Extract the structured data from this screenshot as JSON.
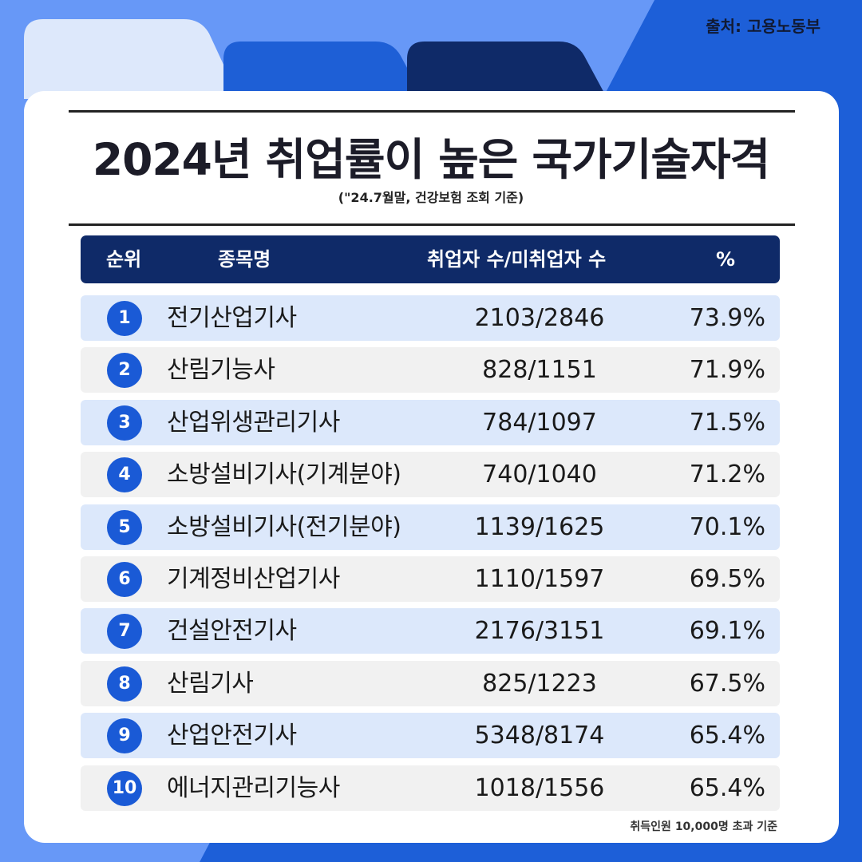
{
  "colors": {
    "background": "#5b8ff5",
    "tab_light": "#dde8fb",
    "tab_mid": "#1e5fd6",
    "tab_dark": "#0f2a68",
    "header_bg": "#0f2a68",
    "rank_circle": "#1a5ad6",
    "row_odd": "#dce8fb",
    "row_even": "#f1f1f1"
  },
  "source": "출처: 고용노동부",
  "title": "2024년 취업률이 높은 국가기술자격",
  "subtitle": "(\"24.7월말, 건강보험 조회 기준)",
  "table": {
    "headers": {
      "rank": "순위",
      "name": "종목명",
      "count": "취업자 수/미취업자 수",
      "pct": "%"
    },
    "rows": [
      {
        "rank": "1",
        "name": "전기산업기사",
        "count": "2103/2846",
        "pct": "73.9%"
      },
      {
        "rank": "2",
        "name": "산림기능사",
        "count": "828/1151",
        "pct": "71.9%"
      },
      {
        "rank": "3",
        "name": "산업위생관리기사",
        "count": "784/1097",
        "pct": "71.5%"
      },
      {
        "rank": "4",
        "name": "소방설비기사(기계분야)",
        "count": "740/1040",
        "pct": "71.2%"
      },
      {
        "rank": "5",
        "name": "소방설비기사(전기분야)",
        "count": "1139/1625",
        "pct": "70.1%"
      },
      {
        "rank": "6",
        "name": "기계정비산업기사",
        "count": "1110/1597",
        "pct": "69.5%"
      },
      {
        "rank": "7",
        "name": "건설안전기사",
        "count": "2176/3151",
        "pct": "69.1%"
      },
      {
        "rank": "8",
        "name": "산림기사",
        "count": "825/1223",
        "pct": "67.5%"
      },
      {
        "rank": "9",
        "name": "산업안전기사",
        "count": "5348/8174",
        "pct": "65.4%"
      },
      {
        "rank": "10",
        "name": "에너지관리기능사",
        "count": "1018/1556",
        "pct": "65.4%"
      }
    ]
  },
  "footnote": "취득인원 10,000명 초과 기준"
}
